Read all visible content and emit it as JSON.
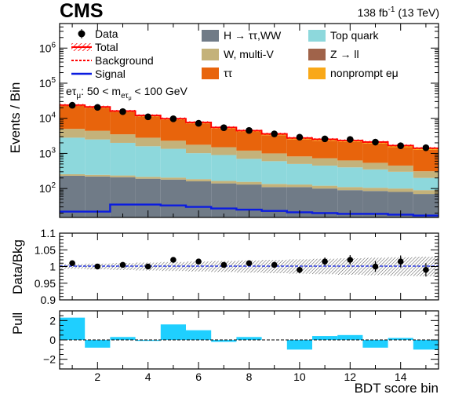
{
  "header": {
    "experiment": "CMS",
    "lumi": "138 fb",
    "lumi_sup": "-1",
    "lumi_energy": " (13 TeV)"
  },
  "annotation": {
    "category_prefix": "eτ",
    "category_prefix_sub": "μ",
    "category_mid": ": 50 < m",
    "category_sub": "eτ",
    "category_sub2": "μ",
    "category_suffix": " < 100 GeV"
  },
  "legend": {
    "data": "Data",
    "total": "Total",
    "background": "Background",
    "signal": "Signal",
    "h_tautau_ww": "H → ττ,WW",
    "w_multiv": "W, multi-V",
    "tautau": "ττ",
    "top_quark": "Top quark",
    "z_ll": "Z → ll",
    "nonprompt": "nonprompt eμ"
  },
  "colors": {
    "h_tautau_ww": "#707b87",
    "w_multiv": "#c4b27a",
    "tautau": "#e8640c",
    "top_quark": "#8dd8dc",
    "z_ll": "#a0634a",
    "nonprompt": "#f9a818",
    "total_band": "#ff0000",
    "background": "#ff0000",
    "signal": "#0b1ce0",
    "data": "#000000",
    "pull_bar": "#1fcfff"
  },
  "chart_data": [
    {
      "type": "bar",
      "panel": "main",
      "stacked": true,
      "ylabel": "Events / Bin",
      "yscale": "log",
      "ylim": [
        15,
        5000000
      ],
      "ytick_labels": [
        "10^2",
        "10^3",
        "10^4",
        "10^5",
        "10^6"
      ],
      "xlim": [
        0.5,
        15.5
      ],
      "x": [
        1,
        2,
        3,
        4,
        5,
        6,
        7,
        8,
        9,
        10,
        11,
        12,
        13,
        14,
        15
      ],
      "series": [
        {
          "name": "H → ττ,WW",
          "values": [
            230,
            220,
            210,
            190,
            180,
            160,
            140,
            130,
            110,
            110,
            100,
            90,
            85,
            80,
            70
          ]
        },
        {
          "name": "W, multi-V",
          "values": [
            25,
            25,
            25,
            25,
            25,
            25,
            25,
            25,
            25,
            20,
            20,
            20,
            20,
            20,
            20
          ]
        },
        {
          "name": "Top quark",
          "values": [
            2550,
            2250,
            1765,
            1385,
            1145,
            830,
            735,
            545,
            465,
            370,
            330,
            290,
            245,
            200,
            110
          ]
        },
        {
          "name": "W, multi-V",
          "values": [
            2200,
            1900,
            1500,
            1200,
            950,
            750,
            600,
            500,
            400,
            320,
            280,
            230,
            190,
            150,
            110
          ]
        },
        {
          "name": "ττ",
          "values": [
            17600,
            15700,
            11700,
            8500,
            6900,
            5400,
            3600,
            2900,
            2300,
            1680,
            1570,
            1480,
            1370,
            1050,
            950
          ]
        },
        {
          "name": "nonprompt eμ",
          "values": [
            1200,
            1100,
            900,
            750,
            600,
            500,
            400,
            350,
            300,
            250,
            230,
            220,
            200,
            180,
            150
          ]
        }
      ],
      "total": [
        23800,
        21200,
        16100,
        12050,
        9800,
        7665,
        5500,
        4450,
        3600,
        2750,
        2530,
        2330,
        2110,
        1680,
        1410
      ],
      "signal": [
        22,
        22,
        35,
        35,
        33,
        30,
        27,
        25,
        23,
        21,
        20,
        19,
        19,
        18,
        17
      ],
      "data": [
        23500,
        20500,
        15500,
        11000,
        9700,
        7200,
        5400,
        4500,
        3600,
        2900,
        2600,
        2500,
        2100,
        1650,
        1450
      ]
    },
    {
      "type": "scatter",
      "panel": "ratio",
      "ylabel": "Data/Bkg",
      "ylim": [
        0.9,
        1.1
      ],
      "ytick_labels": [
        "0.9",
        "0.95",
        "1",
        "1.05",
        "1.1"
      ],
      "x": [
        1,
        2,
        3,
        4,
        5,
        6,
        7,
        8,
        9,
        10,
        11,
        12,
        13,
        14,
        15
      ],
      "values": [
        1.01,
        1.0,
        1.005,
        1.0,
        1.02,
        1.015,
        1.005,
        1.01,
        1.005,
        0.99,
        1.015,
        1.02,
        1.0,
        1.015,
        0.99
      ],
      "errors": [
        0.003,
        0.003,
        0.004,
        0.004,
        0.005,
        0.006,
        0.007,
        0.008,
        0.009,
        0.01,
        0.012,
        0.014,
        0.016,
        0.018,
        0.02
      ]
    },
    {
      "type": "bar",
      "panel": "pull",
      "ylabel": "Pull",
      "ylim": [
        -3,
        3
      ],
      "ytick_labels": [
        "−2",
        "0",
        "2"
      ],
      "xlabel": "BDT score bin",
      "xtick_labels": [
        "2",
        "4",
        "6",
        "8",
        "10",
        "12",
        "14"
      ],
      "x": [
        1,
        2,
        3,
        4,
        5,
        6,
        7,
        8,
        9,
        10,
        11,
        12,
        13,
        14,
        15
      ],
      "values": [
        2.3,
        -0.8,
        0.3,
        -0.1,
        1.6,
        1.0,
        -0.2,
        0.3,
        0.0,
        -1.0,
        0.4,
        0.5,
        -0.8,
        0.2,
        -1.0
      ]
    }
  ]
}
